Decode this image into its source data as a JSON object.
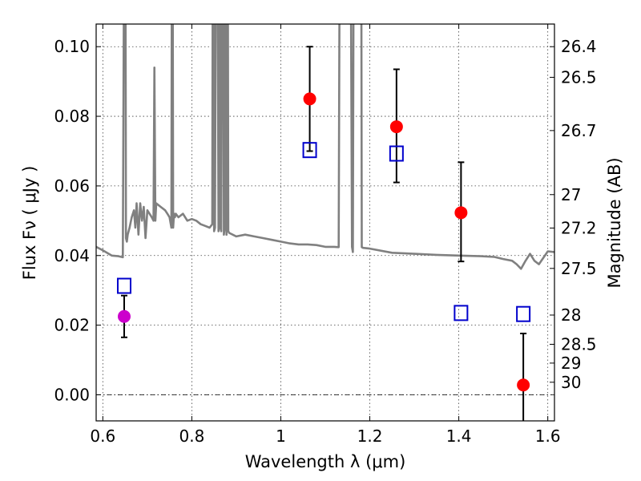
{
  "chart_data": {
    "type": "scatter",
    "title": "",
    "xlabel": "Wavelength  λ (μm)",
    "ylabel": "Flux  Fν  ( μJy )",
    "ylabel_right": "Magnitude (AB)",
    "xlim": [
      0.585,
      1.615
    ],
    "ylim": [
      -0.0075,
      0.1065
    ],
    "x_ticks": [
      0.6,
      0.8,
      1.0,
      1.2,
      1.4,
      1.6
    ],
    "x_tick_labels": [
      "0.6",
      "0.8",
      "1",
      "1.2",
      "1.4",
      "1.6"
    ],
    "y_ticks": [
      0.0,
      0.02,
      0.04,
      0.06,
      0.08,
      0.1
    ],
    "y_tick_labels": [
      "0.00",
      "0.02",
      "0.04",
      "0.06",
      "0.08",
      "0.10"
    ],
    "right_ticks": [
      {
        "label": "26.4",
        "flux": 0.1
      },
      {
        "label": "26.5",
        "flux": 0.0912
      },
      {
        "label": "26.7",
        "flux": 0.0759
      },
      {
        "label": "27",
        "flux": 0.0575
      },
      {
        "label": "27.2",
        "flux": 0.0479
      },
      {
        "label": "27.5",
        "flux": 0.0363
      },
      {
        "label": "28",
        "flux": 0.0229
      },
      {
        "label": "28.5",
        "flux": 0.0145
      },
      {
        "label": "29",
        "flux": 0.0091
      },
      {
        "label": "30",
        "flux": 0.0036
      }
    ],
    "grid": true,
    "reference_line_y": 0.0,
    "spectrum": {
      "color": "#808080",
      "x": [
        0.585,
        0.6,
        0.62,
        0.635,
        0.645,
        0.65,
        0.652,
        0.654,
        0.656,
        0.66,
        0.665,
        0.67,
        0.673,
        0.676,
        0.68,
        0.684,
        0.688,
        0.692,
        0.696,
        0.7,
        0.705,
        0.71,
        0.714,
        0.716,
        0.718,
        0.72,
        0.73,
        0.74,
        0.745,
        0.75,
        0.754,
        0.756,
        0.758,
        0.76,
        0.762,
        0.764,
        0.77,
        0.78,
        0.79,
        0.8,
        0.81,
        0.82,
        0.83,
        0.84,
        0.846,
        0.848,
        0.85,
        0.852,
        0.856,
        0.86,
        0.862,
        0.864,
        0.866,
        0.87,
        0.872,
        0.874,
        0.876,
        0.878,
        0.88,
        0.882,
        0.884,
        0.9,
        0.92,
        0.94,
        0.96,
        0.98,
        1.0,
        1.02,
        1.04,
        1.06,
        1.08,
        1.1,
        1.12,
        1.13,
        1.134,
        1.136,
        1.138,
        1.14,
        1.15,
        1.155,
        1.16,
        1.162,
        1.165,
        1.175,
        1.178,
        1.18,
        1.182,
        1.185,
        1.2,
        1.25,
        1.3,
        1.35,
        1.4,
        1.45,
        1.48,
        1.5,
        1.52,
        1.53,
        1.54,
        1.55,
        1.56,
        1.57,
        1.58,
        1.6,
        1.615
      ],
      "y": [
        0.0425,
        0.0415,
        0.04,
        0.0398,
        0.0395,
        0.2,
        0.045,
        0.044,
        0.046,
        0.048,
        0.051,
        0.053,
        0.048,
        0.055,
        0.046,
        0.055,
        0.05,
        0.054,
        0.045,
        0.053,
        0.052,
        0.051,
        0.05,
        0.094,
        0.05,
        0.055,
        0.054,
        0.053,
        0.052,
        0.051,
        0.048,
        0.2,
        0.048,
        0.052,
        0.051,
        0.052,
        0.051,
        0.052,
        0.05,
        0.0505,
        0.05,
        0.049,
        0.0485,
        0.048,
        0.049,
        0.2,
        0.047,
        0.048,
        0.2,
        0.047,
        0.048,
        0.2,
        0.047,
        0.2,
        0.046,
        0.048,
        0.2,
        0.046,
        0.2,
        0.047,
        0.0465,
        0.0455,
        0.046,
        0.0455,
        0.045,
        0.0445,
        0.044,
        0.0435,
        0.0432,
        0.0432,
        0.043,
        0.0425,
        0.0425,
        0.0424,
        0.2,
        0.2,
        0.2,
        0.2,
        0.2,
        0.2,
        0.0425,
        0.041,
        0.2,
        0.2,
        0.2,
        0.2,
        0.0424,
        0.0422,
        0.042,
        0.0408,
        0.0405,
        0.0402,
        0.04,
        0.0398,
        0.0396,
        0.039,
        0.0385,
        0.0375,
        0.0362,
        0.0385,
        0.0405,
        0.0385,
        0.0375,
        0.0412,
        0.041
      ]
    },
    "series": [
      {
        "marker": "circle",
        "color": "#ff0000",
        "x": [
          1.065,
          1.26,
          1.405,
          1.545
        ],
        "y": [
          0.085,
          0.077,
          0.0523,
          0.0028
        ],
        "err_low": [
          0.015,
          0.016,
          0.014,
          0.011
        ],
        "err_high": [
          0.015,
          0.0165,
          0.0145,
          0.0148
        ]
      },
      {
        "marker": "circle",
        "color": "#cc00cc",
        "x": [
          0.648
        ],
        "y": [
          0.0225
        ],
        "err_low": [
          0.006
        ],
        "err_high": [
          0.006
        ]
      },
      {
        "marker": "square",
        "color": "#0000cc",
        "x": [
          0.648,
          1.065,
          1.26,
          1.405,
          1.545
        ],
        "y": [
          0.0313,
          0.0703,
          0.0693,
          0.0235,
          0.0232
        ]
      }
    ]
  }
}
